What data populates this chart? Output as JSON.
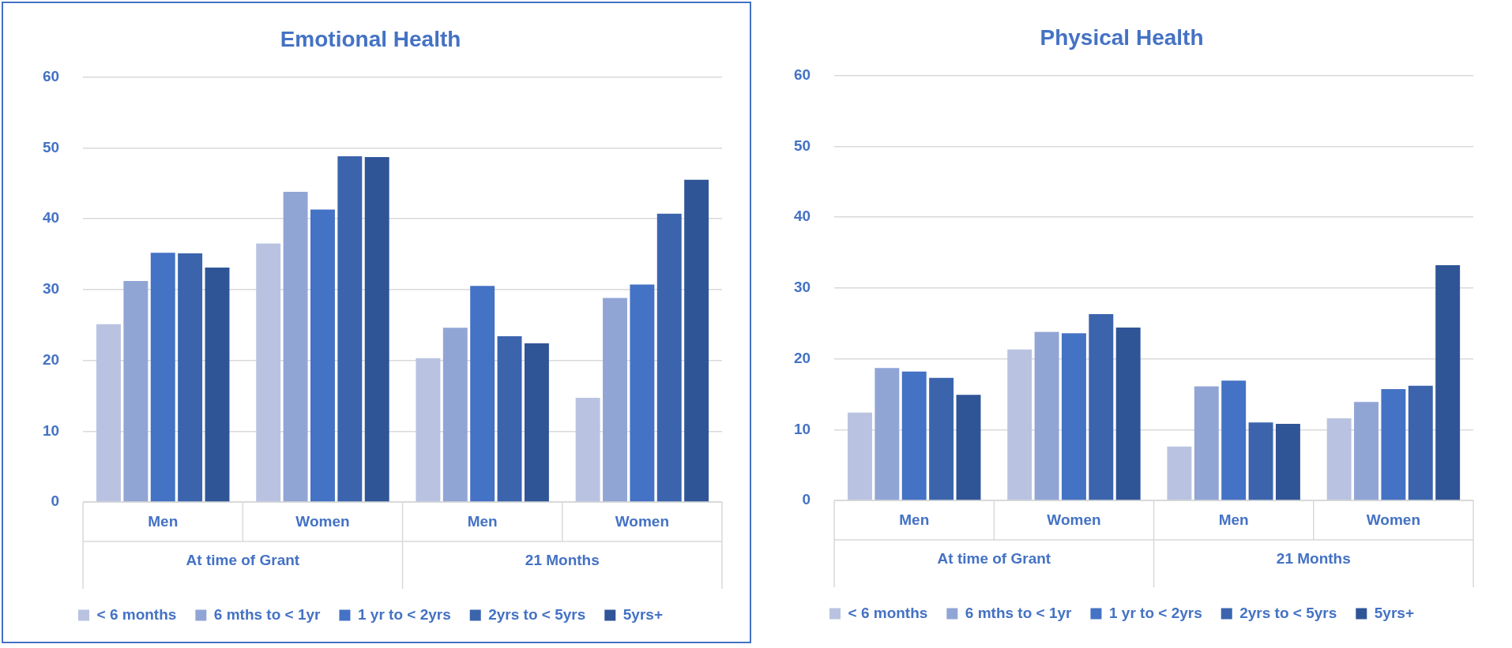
{
  "chart_data": [
    {
      "type": "bar",
      "title": "Emotional Health",
      "categories": [
        "Men",
        "Women",
        "Men",
        "Women"
      ],
      "annotations": [
        "At time of Grant",
        "21 Months"
      ],
      "series": [
        {
          "name": "< 6 months",
          "color": "#b9c3e1",
          "values": [
            25.1,
            36.5,
            20.3,
            14.7
          ]
        },
        {
          "name": "6 mths to < 1yr",
          "color": "#91a5d5",
          "values": [
            31.2,
            43.8,
            24.6,
            28.8
          ]
        },
        {
          "name": "1 yr to < 2yrs",
          "color": "#4472c4",
          "values": [
            35.2,
            41.3,
            30.5,
            30.7
          ]
        },
        {
          "name": "2yrs to < 5yrs",
          "color": "#3b64ad",
          "values": [
            35.1,
            48.8,
            23.4,
            40.7
          ]
        },
        {
          "name": "5yrs+",
          "color": "#2f5597",
          "values": [
            33.1,
            48.7,
            22.4,
            45.5
          ]
        }
      ],
      "ylim": [
        0,
        60
      ],
      "yticks": [
        0,
        10,
        20,
        30,
        40,
        50,
        60
      ],
      "grid": "y",
      "legend": "bottom"
    },
    {
      "type": "bar",
      "title": "Physical Health",
      "categories": [
        "Men",
        "Women",
        "Men",
        "Women"
      ],
      "annotations": [
        "At time of Grant",
        "21 Months"
      ],
      "series": [
        {
          "name": "< 6 months",
          "color": "#b9c3e1",
          "values": [
            12.4,
            21.3,
            7.6,
            11.6
          ]
        },
        {
          "name": "6 mths to < 1yr",
          "color": "#91a5d5",
          "values": [
            18.7,
            23.8,
            16.1,
            13.9
          ]
        },
        {
          "name": "1 yr to < 2yrs",
          "color": "#4472c4",
          "values": [
            18.2,
            23.6,
            16.9,
            15.7
          ]
        },
        {
          "name": "2yrs to < 5yrs",
          "color": "#3b64ad",
          "values": [
            17.3,
            26.3,
            11.0,
            16.2
          ]
        },
        {
          "name": "5yrs+",
          "color": "#2f5597",
          "values": [
            14.9,
            24.4,
            10.8,
            33.2
          ]
        }
      ],
      "ylim": [
        0,
        60
      ],
      "yticks": [
        0,
        10,
        20,
        30,
        40,
        50,
        60
      ],
      "grid": "y",
      "legend": "bottom"
    }
  ]
}
